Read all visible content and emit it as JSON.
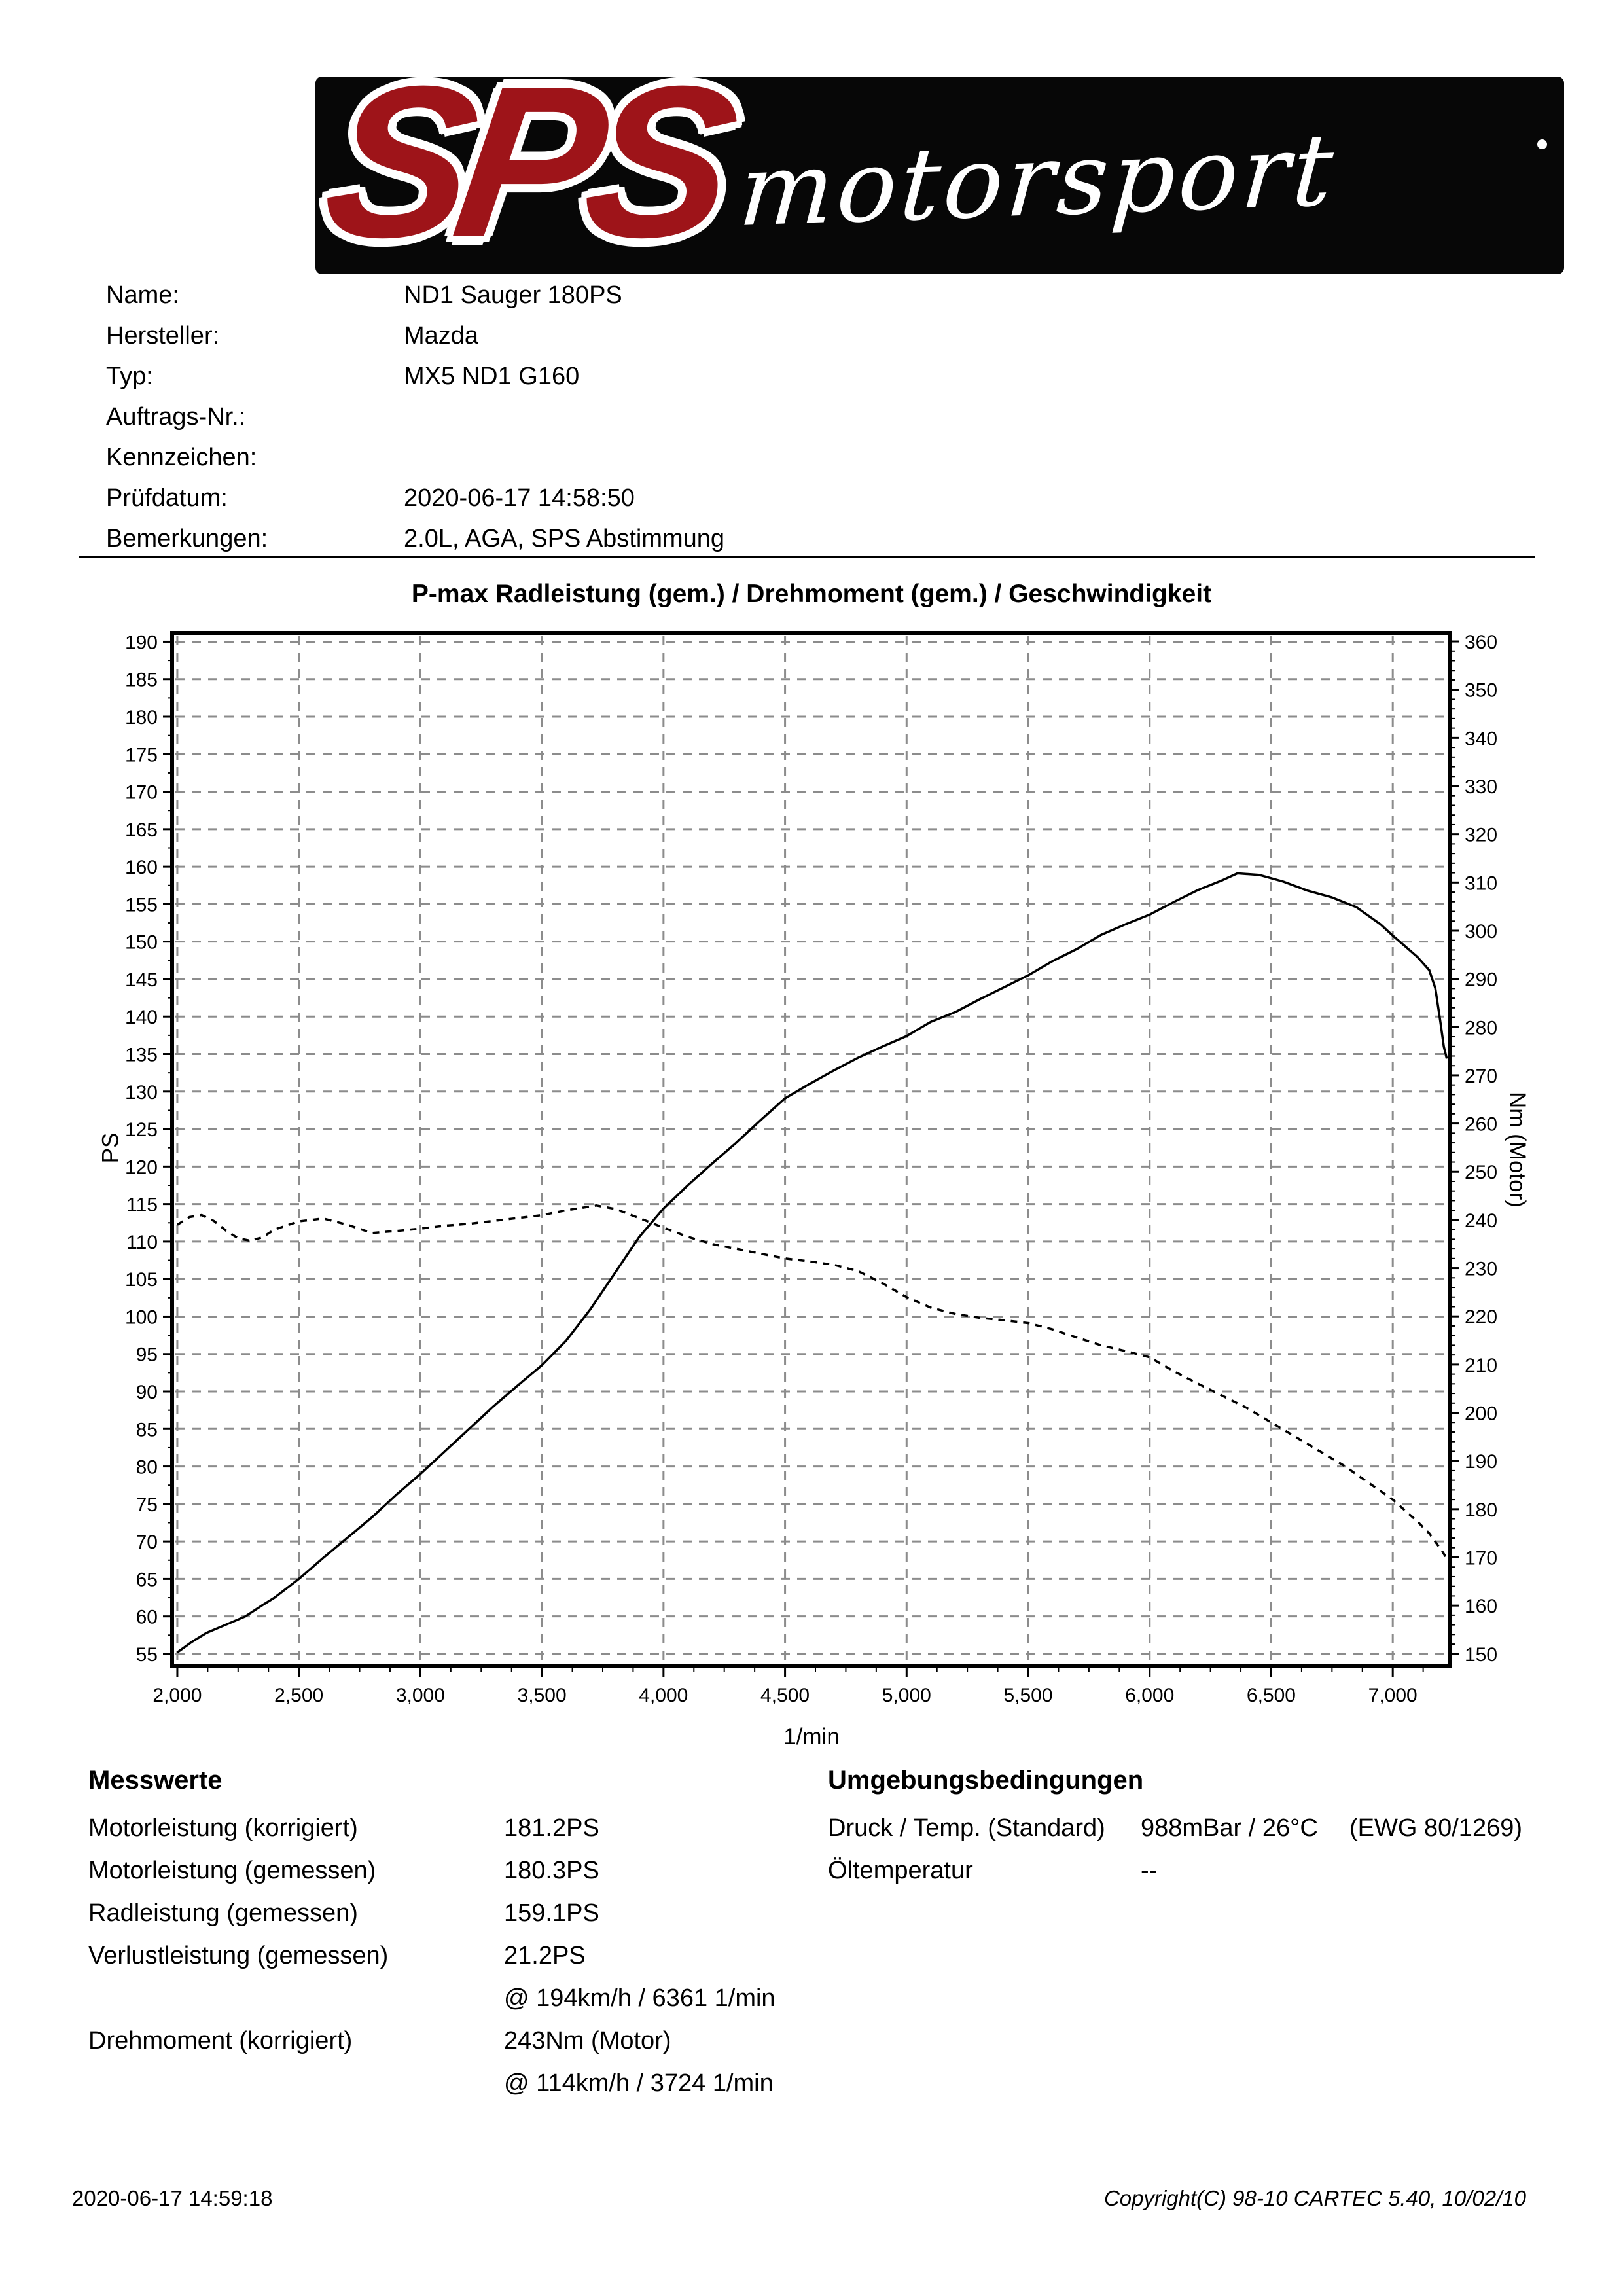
{
  "logo": {
    "sps": "SPS",
    "motorsport": "motorsport"
  },
  "header": {
    "rows": [
      {
        "label": "Name:",
        "value": "ND1 Sauger 180PS"
      },
      {
        "label": "Hersteller:",
        "value": "Mazda"
      },
      {
        "label": "Typ:",
        "value": "MX5 ND1 G160"
      },
      {
        "label": "Auftrags-Nr.:",
        "value": ""
      },
      {
        "label": "Kennzeichen:",
        "value": ""
      },
      {
        "label": "Prüfdatum:",
        "value": "2020-06-17 14:58:50"
      },
      {
        "label": "Bemerkungen:",
        "value": "2.0L, AGA, SPS Abstimmung"
      }
    ]
  },
  "chart": {
    "title": "P-max Radleistung (gem.) / Drehmoment (gem.) / Geschwindigkeit",
    "xlabel": "1/min",
    "left_label": "PS",
    "right_label": "Nm (Motor)"
  },
  "chart_data": {
    "type": "line",
    "title": "P-max Radleistung (gem.) / Drehmoment (gem.) / Geschwindigkeit",
    "xlabel": "1/min",
    "grid": true,
    "grid_color": "#8c8c8c",
    "line_color": "#000000",
    "x_range": [
      1984,
      7231
    ],
    "x_ticks": [
      {
        "v": 2000,
        "label": "2,000"
      },
      {
        "v": 2500,
        "label": "2,500"
      },
      {
        "v": 3000,
        "label": "3,000"
      },
      {
        "v": 3500,
        "label": "3,500"
      },
      {
        "v": 4000,
        "label": "4,000"
      },
      {
        "v": 4500,
        "label": "4,500"
      },
      {
        "v": 5000,
        "label": "5,000"
      },
      {
        "v": 5500,
        "label": "5,500"
      },
      {
        "v": 6000,
        "label": "6,000"
      },
      {
        "v": 6500,
        "label": "6,500"
      },
      {
        "v": 7000,
        "label": "7,000"
      }
    ],
    "y_left": {
      "label": "PS",
      "range": [
        53.6,
        191.0
      ],
      "ticks": [
        55,
        60,
        65,
        70,
        75,
        80,
        85,
        90,
        95,
        100,
        105,
        110,
        115,
        120,
        125,
        130,
        135,
        140,
        145,
        150,
        155,
        160,
        165,
        170,
        175,
        180,
        185,
        190
      ]
    },
    "y_right": {
      "label": "Nm (Motor)",
      "range": [
        147.8,
        361.5
      ],
      "ticks": [
        150,
        160,
        170,
        180,
        190,
        200,
        210,
        220,
        230,
        240,
        250,
        260,
        270,
        280,
        290,
        300,
        310,
        320,
        330,
        340,
        350,
        360
      ]
    },
    "series": [
      {
        "name": "Radleistung (gem.)",
        "unit": "PS",
        "axis": "left",
        "line": "solid",
        "points": [
          [
            2000,
            55.2
          ],
          [
            2060,
            56.6
          ],
          [
            2120,
            57.8
          ],
          [
            2200,
            58.9
          ],
          [
            2280,
            60.0
          ],
          [
            2350,
            61.5
          ],
          [
            2400,
            62.5
          ],
          [
            2500,
            65.0
          ],
          [
            2600,
            67.8
          ],
          [
            2700,
            70.5
          ],
          [
            2800,
            73.2
          ],
          [
            2900,
            76.2
          ],
          [
            3000,
            79.0
          ],
          [
            3100,
            82.0
          ],
          [
            3200,
            85.0
          ],
          [
            3300,
            88.0
          ],
          [
            3400,
            90.8
          ],
          [
            3500,
            93.5
          ],
          [
            3600,
            96.8
          ],
          [
            3700,
            101.0
          ],
          [
            3800,
            105.8
          ],
          [
            3900,
            110.6
          ],
          [
            4000,
            114.4
          ],
          [
            4100,
            117.5
          ],
          [
            4200,
            120.4
          ],
          [
            4300,
            123.2
          ],
          [
            4400,
            126.2
          ],
          [
            4500,
            129.1
          ],
          [
            4600,
            131.0
          ],
          [
            4700,
            132.8
          ],
          [
            4800,
            134.5
          ],
          [
            4900,
            136.0
          ],
          [
            5000,
            137.4
          ],
          [
            5100,
            139.3
          ],
          [
            5200,
            140.6
          ],
          [
            5300,
            142.3
          ],
          [
            5400,
            143.9
          ],
          [
            5500,
            145.5
          ],
          [
            5600,
            147.4
          ],
          [
            5700,
            149.0
          ],
          [
            5800,
            150.9
          ],
          [
            5900,
            152.3
          ],
          [
            6000,
            153.6
          ],
          [
            6100,
            155.3
          ],
          [
            6200,
            156.9
          ],
          [
            6300,
            158.2
          ],
          [
            6361,
            159.1
          ],
          [
            6450,
            158.9
          ],
          [
            6550,
            158.0
          ],
          [
            6650,
            156.8
          ],
          [
            6750,
            155.9
          ],
          [
            6850,
            154.6
          ],
          [
            6950,
            152.3
          ],
          [
            7000,
            150.8
          ],
          [
            7050,
            149.4
          ],
          [
            7100,
            148.0
          ],
          [
            7150,
            146.2
          ],
          [
            7175,
            143.8
          ],
          [
            7195,
            139.5
          ],
          [
            7210,
            136.0
          ],
          [
            7222,
            134.4
          ]
        ]
      },
      {
        "name": "Drehmoment (gem.)",
        "unit": "Nm",
        "axis": "right",
        "line": "dashed",
        "points": [
          [
            2000,
            239.0
          ],
          [
            2050,
            240.6
          ],
          [
            2100,
            241.0
          ],
          [
            2150,
            239.8
          ],
          [
            2200,
            237.8
          ],
          [
            2250,
            236.2
          ],
          [
            2300,
            235.7
          ],
          [
            2350,
            236.4
          ],
          [
            2400,
            238.0
          ],
          [
            2500,
            239.7
          ],
          [
            2600,
            240.3
          ],
          [
            2700,
            239.0
          ],
          [
            2800,
            237.3
          ],
          [
            2900,
            237.7
          ],
          [
            3000,
            238.2
          ],
          [
            3100,
            238.8
          ],
          [
            3200,
            239.2
          ],
          [
            3300,
            239.8
          ],
          [
            3400,
            240.4
          ],
          [
            3500,
            241.0
          ],
          [
            3600,
            242.0
          ],
          [
            3724,
            243.0
          ],
          [
            3800,
            242.3
          ],
          [
            3900,
            240.4
          ],
          [
            4000,
            238.4
          ],
          [
            4100,
            236.5
          ],
          [
            4200,
            235.0
          ],
          [
            4300,
            234.0
          ],
          [
            4400,
            233.0
          ],
          [
            4500,
            232.0
          ],
          [
            4600,
            231.4
          ],
          [
            4700,
            230.7
          ],
          [
            4800,
            229.4
          ],
          [
            4900,
            226.9
          ],
          [
            5000,
            224.0
          ],
          [
            5100,
            221.8
          ],
          [
            5200,
            220.5
          ],
          [
            5300,
            219.7
          ],
          [
            5400,
            219.2
          ],
          [
            5500,
            218.6
          ],
          [
            5600,
            217.3
          ],
          [
            5700,
            215.6
          ],
          [
            5800,
            214.0
          ],
          [
            5900,
            212.8
          ],
          [
            6000,
            211.5
          ],
          [
            6100,
            208.6
          ],
          [
            6200,
            206.0
          ],
          [
            6300,
            203.5
          ],
          [
            6400,
            201.0
          ],
          [
            6500,
            198.0
          ],
          [
            6600,
            195.0
          ],
          [
            6700,
            192.0
          ],
          [
            6800,
            189.0
          ],
          [
            6900,
            185.5
          ],
          [
            7000,
            182.0
          ],
          [
            7100,
            177.5
          ],
          [
            7150,
            175.0
          ],
          [
            7200,
            171.5
          ],
          [
            7222,
            169.8
          ]
        ]
      }
    ]
  },
  "messwerte": {
    "title": "Messwerte",
    "rows": [
      {
        "label": "Motorleistung (korrigiert)",
        "value": "181.2PS"
      },
      {
        "label": "Motorleistung (gemessen)",
        "value": "180.3PS"
      },
      {
        "label": "Radleistung (gemessen)",
        "value": "159.1PS"
      },
      {
        "label": "Verlustleistung (gemessen)",
        "value": "21.2PS"
      },
      {
        "label": "",
        "value": "@ 194km/h / 6361 1/min"
      },
      {
        "label": "Drehmoment (korrigiert)",
        "value": "243Nm (Motor)"
      },
      {
        "label": "",
        "value": "@ 114km/h / 3724 1/min"
      }
    ]
  },
  "umgebung": {
    "title": "Umgebungsbedingungen",
    "rows": [
      {
        "label": "Druck / Temp. (Standard)",
        "value": "988mBar / 26°C",
        "extra": "(EWG 80/1269)"
      },
      {
        "label": "Öltemperatur",
        "value": "--",
        "extra": ""
      }
    ]
  },
  "footer": {
    "timestamp": "2020-06-17 14:59:18",
    "copyright": "Copyright(C) 98-10 CARTEC 5.40, 10/02/10"
  },
  "colors": {
    "accent_red": "#9e1419",
    "grid": "#8c8c8c",
    "ink": "#000000"
  }
}
